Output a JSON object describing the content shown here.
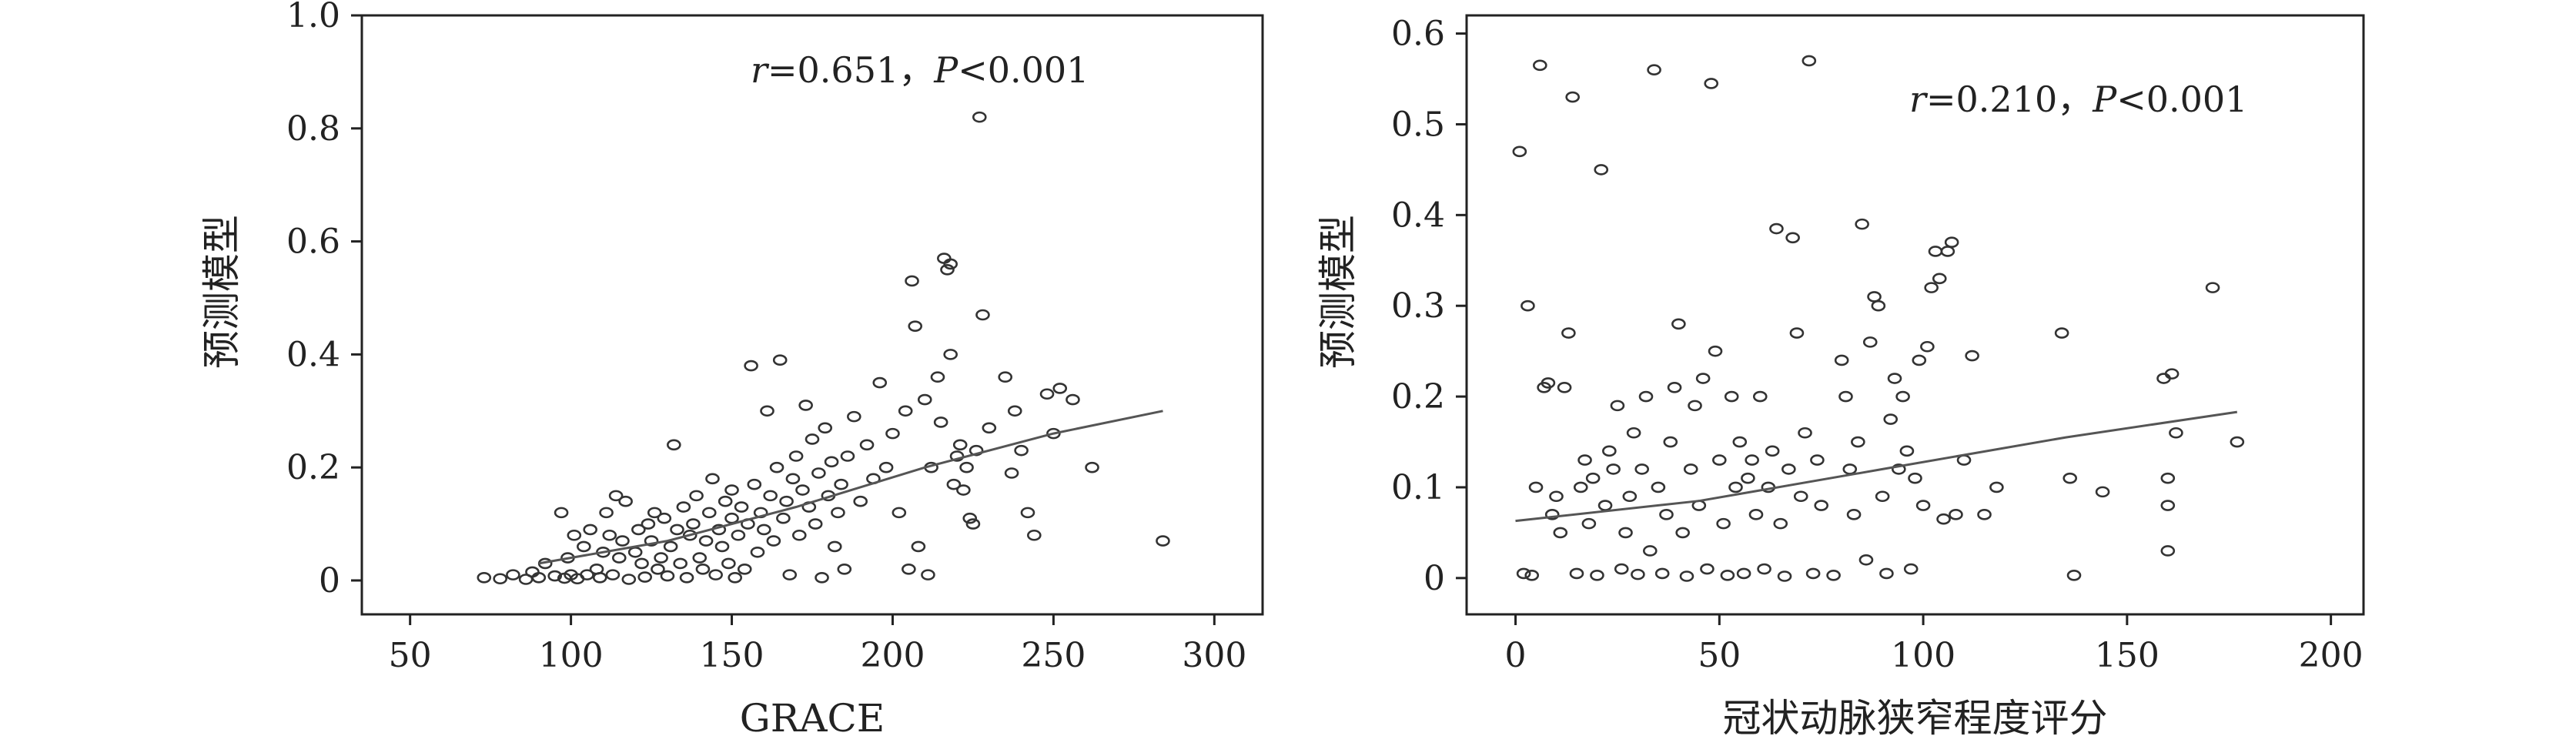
{
  "chart_data": [
    {
      "type": "scatter",
      "xlabel": "GRACE",
      "ylabel": "预测模型",
      "annotation": {
        "r_label": "r",
        "r_text": "=0.651，",
        "p_label": "P",
        "p_text": "<0.001"
      },
      "xlim": [
        35,
        315
      ],
      "ylim": [
        -0.06,
        1.0
      ],
      "xticks": [
        50,
        100,
        150,
        200,
        250,
        300
      ],
      "yticks": [
        0,
        0.2,
        0.4,
        0.6,
        0.8,
        1.0
      ],
      "ytick_labels": [
        "0",
        "0.2",
        "0.4",
        "0.6",
        "0.8",
        "1.0"
      ],
      "grid": false,
      "trend_line": [
        [
          90,
          0.03
        ],
        [
          130,
          0.07
        ],
        [
          170,
          0.13
        ],
        [
          210,
          0.2
        ],
        [
          250,
          0.26
        ],
        [
          284,
          0.3
        ]
      ],
      "points": [
        [
          73,
          0.005
        ],
        [
          78,
          0.003
        ],
        [
          82,
          0.01
        ],
        [
          86,
          0.002
        ],
        [
          88,
          0.015
        ],
        [
          90,
          0.005
        ],
        [
          92,
          0.03
        ],
        [
          95,
          0.008
        ],
        [
          97,
          0.12
        ],
        [
          98,
          0.004
        ],
        [
          99,
          0.04
        ],
        [
          100,
          0.01
        ],
        [
          101,
          0.08
        ],
        [
          102,
          0.003
        ],
        [
          104,
          0.06
        ],
        [
          105,
          0.01
        ],
        [
          106,
          0.09
        ],
        [
          108,
          0.02
        ],
        [
          109,
          0.005
        ],
        [
          110,
          0.05
        ],
        [
          111,
          0.12
        ],
        [
          112,
          0.08
        ],
        [
          113,
          0.01
        ],
        [
          114,
          0.15
        ],
        [
          115,
          0.04
        ],
        [
          116,
          0.07
        ],
        [
          117,
          0.14
        ],
        [
          118,
          0.002
        ],
        [
          120,
          0.05
        ],
        [
          121,
          0.09
        ],
        [
          122,
          0.03
        ],
        [
          123,
          0.006
        ],
        [
          124,
          0.1
        ],
        [
          125,
          0.07
        ],
        [
          126,
          0.12
        ],
        [
          127,
          0.02
        ],
        [
          128,
          0.04
        ],
        [
          129,
          0.11
        ],
        [
          130,
          0.008
        ],
        [
          131,
          0.06
        ],
        [
          132,
          0.24
        ],
        [
          133,
          0.09
        ],
        [
          134,
          0.03
        ],
        [
          135,
          0.13
        ],
        [
          136,
          0.005
        ],
        [
          137,
          0.08
        ],
        [
          138,
          0.1
        ],
        [
          139,
          0.15
        ],
        [
          140,
          0.04
        ],
        [
          141,
          0.02
        ],
        [
          142,
          0.07
        ],
        [
          143,
          0.12
        ],
        [
          144,
          0.18
        ],
        [
          145,
          0.01
        ],
        [
          146,
          0.09
        ],
        [
          147,
          0.06
        ],
        [
          148,
          0.14
        ],
        [
          149,
          0.03
        ],
        [
          150,
          0.11
        ],
        [
          150,
          0.16
        ],
        [
          151,
          0.005
        ],
        [
          152,
          0.08
        ],
        [
          153,
          0.13
        ],
        [
          154,
          0.02
        ],
        [
          155,
          0.1
        ],
        [
          156,
          0.38
        ],
        [
          157,
          0.17
        ],
        [
          158,
          0.05
        ],
        [
          159,
          0.12
        ],
        [
          160,
          0.09
        ],
        [
          161,
          0.3
        ],
        [
          162,
          0.15
        ],
        [
          163,
          0.07
        ],
        [
          164,
          0.2
        ],
        [
          165,
          0.39
        ],
        [
          166,
          0.11
        ],
        [
          167,
          0.14
        ],
        [
          168,
          0.01
        ],
        [
          169,
          0.18
        ],
        [
          170,
          0.22
        ],
        [
          171,
          0.08
        ],
        [
          172,
          0.16
        ],
        [
          173,
          0.31
        ],
        [
          174,
          0.13
        ],
        [
          175,
          0.25
        ],
        [
          176,
          0.1
        ],
        [
          177,
          0.19
        ],
        [
          178,
          0.005
        ],
        [
          179,
          0.27
        ],
        [
          180,
          0.15
        ],
        [
          181,
          0.21
        ],
        [
          182,
          0.06
        ],
        [
          183,
          0.12
        ],
        [
          184,
          0.17
        ],
        [
          185,
          0.02
        ],
        [
          186,
          0.22
        ],
        [
          188,
          0.29
        ],
        [
          190,
          0.14
        ],
        [
          192,
          0.24
        ],
        [
          194,
          0.18
        ],
        [
          196,
          0.35
        ],
        [
          198,
          0.2
        ],
        [
          200,
          0.26
        ],
        [
          202,
          0.12
        ],
        [
          204,
          0.3
        ],
        [
          205,
          0.02
        ],
        [
          206,
          0.53
        ],
        [
          207,
          0.45
        ],
        [
          208,
          0.06
        ],
        [
          210,
          0.32
        ],
        [
          211,
          0.01
        ],
        [
          212,
          0.2
        ],
        [
          214,
          0.36
        ],
        [
          215,
          0.28
        ],
        [
          216,
          0.57
        ],
        [
          217,
          0.55
        ],
        [
          218,
          0.56
        ],
        [
          218,
          0.4
        ],
        [
          219,
          0.17
        ],
        [
          220,
          0.22
        ],
        [
          221,
          0.24
        ],
        [
          222,
          0.16
        ],
        [
          223,
          0.2
        ],
        [
          224,
          0.11
        ],
        [
          225,
          0.1
        ],
        [
          226,
          0.23
        ],
        [
          227,
          0.82
        ],
        [
          228,
          0.47
        ],
        [
          230,
          0.27
        ],
        [
          235,
          0.36
        ],
        [
          237,
          0.19
        ],
        [
          238,
          0.3
        ],
        [
          240,
          0.23
        ],
        [
          242,
          0.12
        ],
        [
          244,
          0.08
        ],
        [
          248,
          0.33
        ],
        [
          250,
          0.26
        ],
        [
          252,
          0.34
        ],
        [
          256,
          0.32
        ],
        [
          262,
          0.2
        ],
        [
          284,
          0.07
        ]
      ]
    },
    {
      "type": "scatter",
      "xlabel": "冠状动脉狭窄程度评分",
      "ylabel": "预测模型",
      "annotation": {
        "r_label": "r",
        "r_text": "=0.210，",
        "p_label": "P",
        "p_text": "<0.001"
      },
      "xlim": [
        -12,
        208
      ],
      "ylim": [
        -0.04,
        0.62
      ],
      "xticks": [
        0,
        50,
        100,
        150,
        200
      ],
      "yticks": [
        0,
        0.1,
        0.2,
        0.3,
        0.4,
        0.5,
        0.6
      ],
      "ytick_labels": [
        "0",
        "0.1",
        "0.2",
        "0.3",
        "0.4",
        "0.5",
        "0.6"
      ],
      "grid": false,
      "trend_line": [
        [
          0,
          0.063
        ],
        [
          45,
          0.085
        ],
        [
          90,
          0.12
        ],
        [
          135,
          0.155
        ],
        [
          177,
          0.183
        ]
      ],
      "points": [
        [
          1,
          0.47
        ],
        [
          2,
          0.005
        ],
        [
          3,
          0.3
        ],
        [
          4,
          0.003
        ],
        [
          5,
          0.1
        ],
        [
          6,
          0.565
        ],
        [
          7,
          0.21
        ],
        [
          8,
          0.215
        ],
        [
          9,
          0.07
        ],
        [
          10,
          0.09
        ],
        [
          11,
          0.05
        ],
        [
          12,
          0.21
        ],
        [
          13,
          0.27
        ],
        [
          14,
          0.53
        ],
        [
          15,
          0.005
        ],
        [
          16,
          0.1
        ],
        [
          17,
          0.13
        ],
        [
          18,
          0.06
        ],
        [
          19,
          0.11
        ],
        [
          20,
          0.003
        ],
        [
          21,
          0.45
        ],
        [
          22,
          0.08
        ],
        [
          23,
          0.14
        ],
        [
          24,
          0.12
        ],
        [
          25,
          0.19
        ],
        [
          26,
          0.01
        ],
        [
          27,
          0.05
        ],
        [
          28,
          0.09
        ],
        [
          29,
          0.16
        ],
        [
          30,
          0.004
        ],
        [
          31,
          0.12
        ],
        [
          32,
          0.2
        ],
        [
          33,
          0.03
        ],
        [
          34,
          0.56
        ],
        [
          35,
          0.1
        ],
        [
          36,
          0.005
        ],
        [
          37,
          0.07
        ],
        [
          38,
          0.15
        ],
        [
          39,
          0.21
        ],
        [
          40,
          0.28
        ],
        [
          41,
          0.05
        ],
        [
          42,
          0.002
        ],
        [
          43,
          0.12
        ],
        [
          44,
          0.19
        ],
        [
          45,
          0.08
        ],
        [
          46,
          0.22
        ],
        [
          47,
          0.01
        ],
        [
          48,
          0.545
        ],
        [
          49,
          0.25
        ],
        [
          50,
          0.13
        ],
        [
          51,
          0.06
        ],
        [
          52,
          0.003
        ],
        [
          53,
          0.2
        ],
        [
          54,
          0.1
        ],
        [
          55,
          0.15
        ],
        [
          56,
          0.005
        ],
        [
          57,
          0.11
        ],
        [
          58,
          0.13
        ],
        [
          59,
          0.07
        ],
        [
          60,
          0.2
        ],
        [
          61,
          0.01
        ],
        [
          62,
          0.1
        ],
        [
          63,
          0.14
        ],
        [
          64,
          0.385
        ],
        [
          65,
          0.06
        ],
        [
          66,
          0.002
        ],
        [
          67,
          0.12
        ],
        [
          68,
          0.375
        ],
        [
          69,
          0.27
        ],
        [
          70,
          0.09
        ],
        [
          71,
          0.16
        ],
        [
          72,
          0.57
        ],
        [
          73,
          0.005
        ],
        [
          74,
          0.13
        ],
        [
          75,
          0.08
        ],
        [
          78,
          0.003
        ],
        [
          80,
          0.24
        ],
        [
          81,
          0.2
        ],
        [
          82,
          0.12
        ],
        [
          83,
          0.07
        ],
        [
          84,
          0.15
        ],
        [
          85,
          0.39
        ],
        [
          86,
          0.02
        ],
        [
          87,
          0.26
        ],
        [
          88,
          0.31
        ],
        [
          89,
          0.3
        ],
        [
          90,
          0.09
        ],
        [
          91,
          0.005
        ],
        [
          92,
          0.175
        ],
        [
          93,
          0.22
        ],
        [
          94,
          0.12
        ],
        [
          95,
          0.2
        ],
        [
          96,
          0.14
        ],
        [
          97,
          0.01
        ],
        [
          98,
          0.11
        ],
        [
          99,
          0.24
        ],
        [
          100,
          0.08
        ],
        [
          101,
          0.255
        ],
        [
          102,
          0.32
        ],
        [
          103,
          0.36
        ],
        [
          104,
          0.33
        ],
        [
          105,
          0.065
        ],
        [
          106,
          0.36
        ],
        [
          107,
          0.37
        ],
        [
          108,
          0.07
        ],
        [
          110,
          0.13
        ],
        [
          112,
          0.245
        ],
        [
          115,
          0.07
        ],
        [
          118,
          0.1
        ],
        [
          134,
          0.27
        ],
        [
          136,
          0.11
        ],
        [
          137,
          0.003
        ],
        [
          144,
          0.095
        ],
        [
          159,
          0.22
        ],
        [
          160,
          0.03
        ],
        [
          160,
          0.08
        ],
        [
          160,
          0.11
        ],
        [
          161,
          0.225
        ],
        [
          162,
          0.16
        ],
        [
          171,
          0.32
        ],
        [
          177,
          0.15
        ]
      ]
    }
  ]
}
